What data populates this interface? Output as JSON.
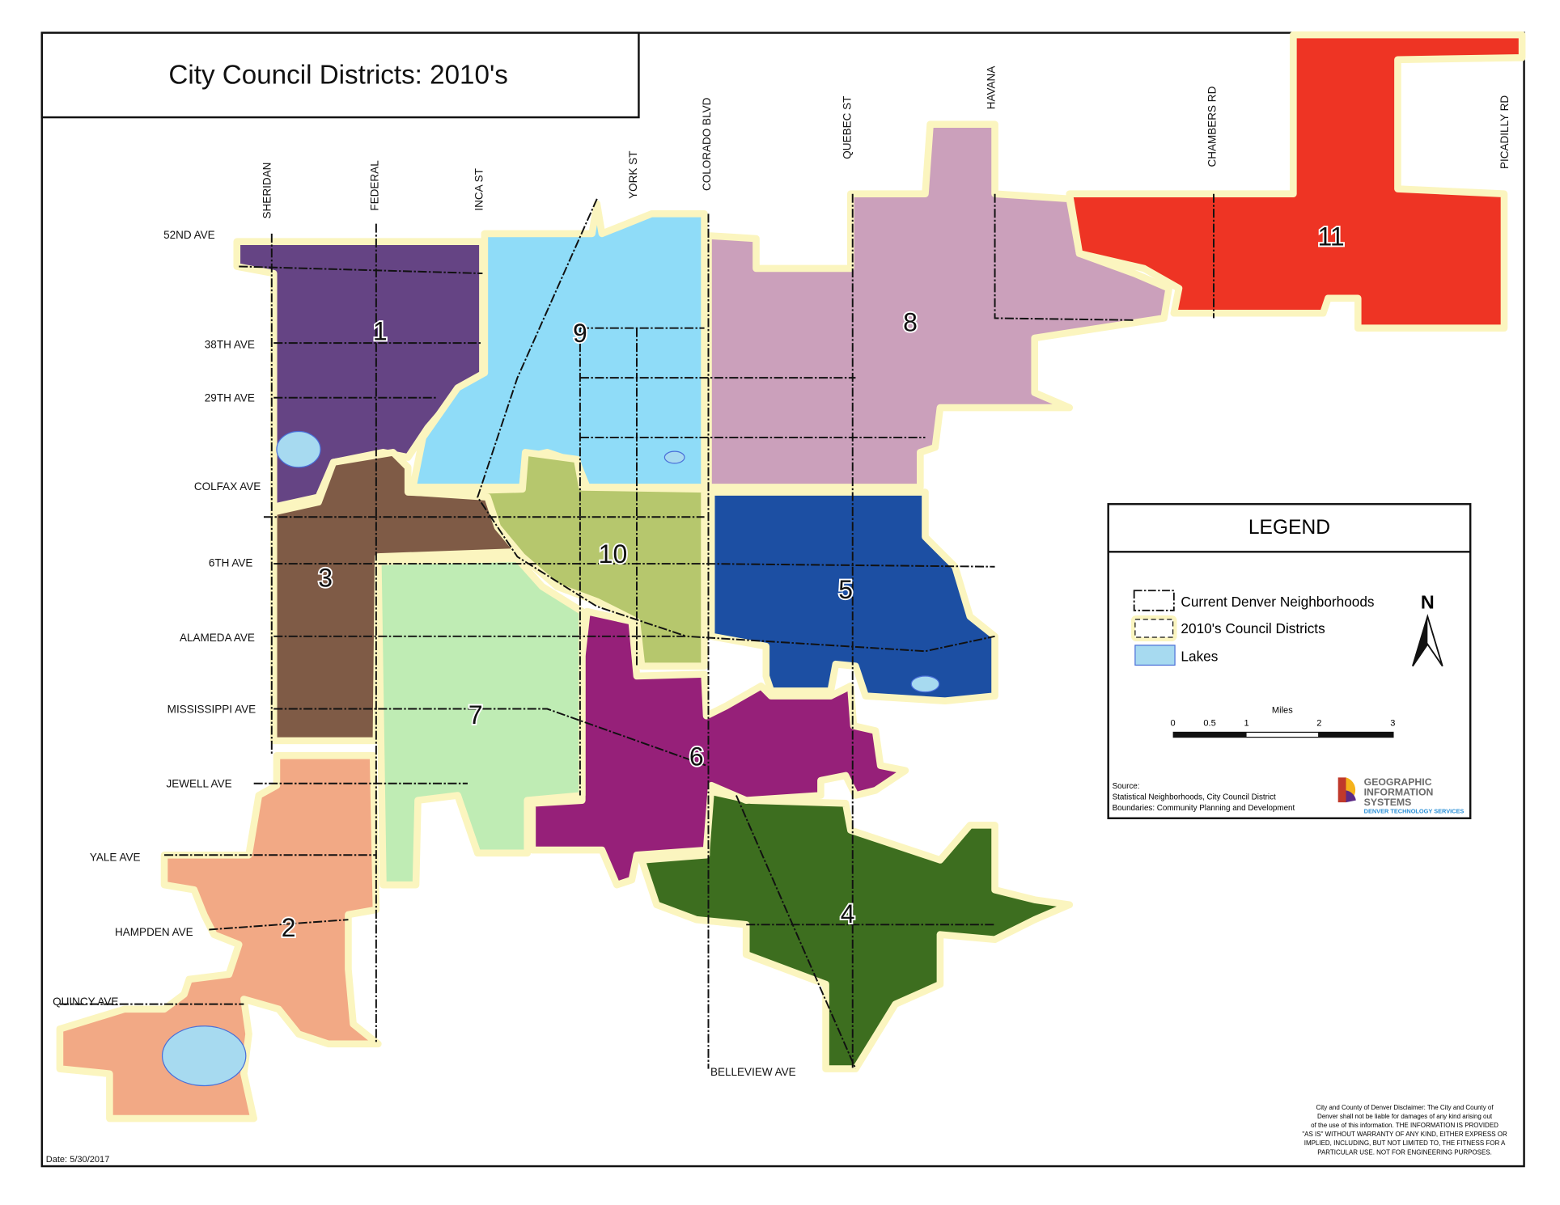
{
  "title": "City Council Districts: 2010's",
  "date": "Date: 5/30/2017",
  "streets_ns": [
    "SHERIDAN",
    "FEDERAL",
    "INCA ST",
    "YORK ST",
    "COLORADO BLVD",
    "QUEBEC ST",
    "HAVANA",
    "CHAMBERS RD",
    "PICADILLY RD"
  ],
  "streets_ew": [
    "52ND AVE",
    "38TH AVE",
    "29TH AVE",
    "COLFAX AVE",
    "6TH AVE",
    "ALAMEDA AVE",
    "MISSISSIPPI AVE",
    "JEWELL AVE",
    "YALE AVE",
    "HAMPDEN AVE",
    "QUINCY AVE",
    "BELLEVIEW AVE"
  ],
  "districts": [
    {
      "number": "1",
      "color": "#654484"
    },
    {
      "number": "2",
      "color": "#f2a985"
    },
    {
      "number": "3",
      "color": "#7f5b46"
    },
    {
      "number": "4",
      "color": "#3d6e1f"
    },
    {
      "number": "5",
      "color": "#1c4fa3"
    },
    {
      "number": "6",
      "color": "#962079"
    },
    {
      "number": "7",
      "color": "#bfecb4"
    },
    {
      "number": "8",
      "color": "#cba0bb"
    },
    {
      "number": "9",
      "color": "#8fdcf8"
    },
    {
      "number": "10",
      "color": "#b6c76d"
    },
    {
      "number": "11",
      "color": "#ee3424"
    }
  ],
  "legend": {
    "title": "LEGEND",
    "items": [
      "Current Denver Neighborhoods",
      "2010's Council Districts",
      "Lakes"
    ],
    "north": "N",
    "scale_unit": "Miles",
    "scale_ticks": [
      "0",
      "0.5",
      "1",
      "2",
      "3"
    ],
    "source_label": "Source:",
    "source_text_1": "Statistical Neighborhoods, City Council District",
    "source_text_2": "Boundaries: Community Planning and Development",
    "logo": {
      "line1": "GEOGRAPHIC",
      "line2": "INFORMATION",
      "line3": "SYSTEMS",
      "line4": "DENVER TECHNOLOGY SERVICES"
    }
  },
  "disclaimer": [
    "City and County of Denver Disclaimer: The City and County of",
    "Denver shall not be liable for damages of any kind arising out",
    "of the use of this information. THE INFORMATION IS PROVIDED",
    "\"AS IS\" WITHOUT WARRANTY OF ANY KIND, EITHER EXPRESS OR",
    "IMPLIED, INCLUDING, BUT NOT LIMITED TO, THE FITNESS FOR A",
    "PARTICULAR USE. NOT FOR ENGINEERING PURPOSES."
  ]
}
